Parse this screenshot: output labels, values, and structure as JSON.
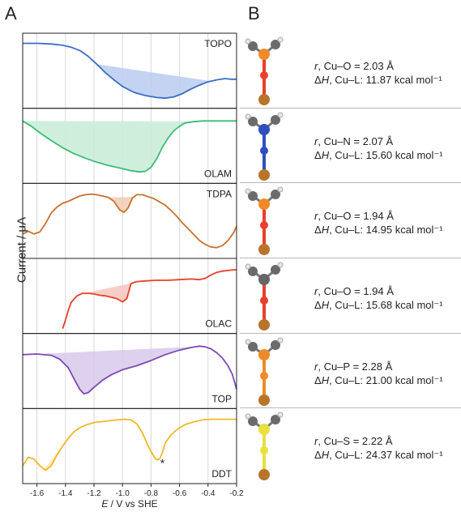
{
  "panel_a_label": "A",
  "panel_b_label": "B",
  "chart_data": {
    "type": "line",
    "xlabel_italic": "E",
    "xlabel_rest": " / V vs SHE",
    "ylabel": "Current / μA",
    "xlim": [
      -1.7,
      -0.2
    ],
    "xticks": [
      "-1.6",
      "-1.4",
      "-1.2",
      "-1.0",
      "-0.8",
      "-0.6",
      "-0.4",
      "-0.2"
    ],
    "grid": "vertical",
    "series": [
      {
        "name": "TOPO",
        "color": "#3a6fc4",
        "fill": "#b8cbee",
        "x": [
          -1.7,
          -1.6,
          -1.5,
          -1.42,
          -1.36,
          -1.3,
          -1.24,
          -1.18,
          -1.12,
          -1.06,
          -1.0,
          -0.92,
          -0.84,
          -0.76,
          -0.7,
          -0.64,
          -0.58,
          -0.52,
          -0.46,
          -0.4,
          -0.34,
          -0.28,
          -0.24,
          -0.2
        ],
        "y": [
          0.92,
          0.92,
          0.91,
          0.89,
          0.86,
          0.81,
          0.72,
          0.6,
          0.47,
          0.36,
          0.26,
          0.17,
          0.12,
          0.09,
          0.08,
          0.1,
          0.15,
          0.22,
          0.28,
          0.33,
          0.36,
          0.38,
          0.37,
          0.37
        ],
        "fill_range": [
          -1.18,
          -0.38
        ]
      },
      {
        "name": "OLAM",
        "color": "#3dbb7a",
        "fill": "#c7ecd6",
        "x": [
          -1.7,
          -1.64,
          -1.58,
          -1.5,
          -1.42,
          -1.34,
          -1.26,
          -1.18,
          -1.1,
          -1.02,
          -0.94,
          -0.88,
          -0.84,
          -0.8,
          -0.76,
          -0.72,
          -0.68,
          -0.64,
          -0.6,
          -0.56,
          -0.5,
          -0.44,
          -0.38,
          -0.32,
          -0.26,
          -0.2
        ],
        "y": [
          0.88,
          0.8,
          0.7,
          0.58,
          0.47,
          0.38,
          0.31,
          0.25,
          0.2,
          0.16,
          0.12,
          0.1,
          0.11,
          0.17,
          0.3,
          0.48,
          0.62,
          0.73,
          0.8,
          0.85,
          0.87,
          0.88,
          0.88,
          0.88,
          0.88,
          0.88
        ],
        "fill_range": [
          -1.7,
          -0.48
        ]
      },
      {
        "name": "TDPA",
        "color": "#c8712d",
        "fill": "#f0cdb3",
        "x": [
          -1.7,
          -1.66,
          -1.62,
          -1.58,
          -1.54,
          -1.5,
          -1.46,
          -1.42,
          -1.38,
          -1.34,
          -1.3,
          -1.26,
          -1.22,
          -1.18,
          -1.14,
          -1.1,
          -1.06,
          -1.02,
          -0.99,
          -0.96,
          -0.93,
          -0.9,
          -0.86,
          -0.82,
          -0.78,
          -0.74,
          -0.7,
          -0.66,
          -0.62,
          -0.58,
          -0.54,
          -0.5,
          -0.46,
          -0.42,
          -0.38,
          -0.34,
          -0.3,
          -0.26,
          -0.22,
          -0.2
        ],
        "y": [
          0.3,
          0.34,
          0.3,
          0.33,
          0.46,
          0.62,
          0.71,
          0.77,
          0.8,
          0.84,
          0.88,
          0.9,
          0.91,
          0.9,
          0.88,
          0.86,
          0.8,
          0.67,
          0.63,
          0.7,
          0.85,
          0.9,
          0.9,
          0.87,
          0.84,
          0.79,
          0.74,
          0.66,
          0.57,
          0.47,
          0.38,
          0.29,
          0.2,
          0.14,
          0.1,
          0.09,
          0.12,
          0.2,
          0.32,
          0.42
        ],
        "fill_range": [
          -1.1,
          -0.92
        ]
      },
      {
        "name": "OLAC",
        "color": "#e8402a",
        "fill": "#f6c4bf",
        "x": [
          -1.42,
          -1.4,
          -1.38,
          -1.36,
          -1.32,
          -1.28,
          -1.24,
          -1.2,
          -1.16,
          -1.12,
          -1.08,
          -1.04,
          -1.0,
          -0.97,
          -0.94,
          -0.9,
          -0.84,
          -0.76,
          -0.68,
          -0.6,
          -0.52,
          -0.46,
          -0.42,
          -0.38,
          -0.34,
          -0.3,
          -0.26,
          -0.22,
          -0.2
        ],
        "y": [
          0.0,
          0.13,
          0.28,
          0.4,
          0.5,
          0.54,
          0.54,
          0.53,
          0.51,
          0.5,
          0.48,
          0.46,
          0.41,
          0.46,
          0.69,
          0.72,
          0.73,
          0.74,
          0.74,
          0.75,
          0.76,
          0.75,
          0.77,
          0.82,
          0.86,
          0.88,
          0.89,
          0.9,
          0.9
        ],
        "fill_range": [
          -1.27,
          -0.93
        ]
      },
      {
        "name": "TOP",
        "color": "#7b4ab4",
        "fill": "#d8c9ea",
        "x": [
          -1.7,
          -1.6,
          -1.5,
          -1.44,
          -1.38,
          -1.34,
          -1.3,
          -1.27,
          -1.24,
          -1.2,
          -1.14,
          -1.08,
          -1.0,
          -0.9,
          -0.8,
          -0.7,
          -0.6,
          -0.52,
          -0.46,
          -0.42,
          -0.38,
          -0.34,
          -0.3,
          -0.26,
          -0.23,
          -0.21,
          -0.2
        ],
        "y": [
          0.75,
          0.76,
          0.74,
          0.68,
          0.55,
          0.38,
          0.22,
          0.15,
          0.17,
          0.25,
          0.36,
          0.44,
          0.52,
          0.58,
          0.66,
          0.75,
          0.82,
          0.86,
          0.88,
          0.87,
          0.84,
          0.78,
          0.7,
          0.58,
          0.45,
          0.3,
          0.22
        ],
        "fill_range": [
          -1.62,
          -0.48
        ]
      },
      {
        "name": "DDT",
        "color": "#f0b828",
        "fill": "#fbe6b8",
        "x": [
          -1.7,
          -1.66,
          -1.62,
          -1.58,
          -1.54,
          -1.5,
          -1.46,
          -1.42,
          -1.38,
          -1.34,
          -1.3,
          -1.26,
          -1.2,
          -1.12,
          -1.04,
          -0.98,
          -0.94,
          -0.9,
          -0.86,
          -0.82,
          -0.78,
          -0.76,
          -0.74,
          -0.72,
          -0.7,
          -0.66,
          -0.62,
          -0.56,
          -0.5,
          -0.44,
          -0.38,
          -0.32,
          -0.26,
          -0.2
        ],
        "y": [
          0.2,
          0.33,
          0.3,
          0.2,
          0.13,
          0.2,
          0.36,
          0.5,
          0.62,
          0.72,
          0.78,
          0.82,
          0.86,
          0.88,
          0.9,
          0.91,
          0.9,
          0.84,
          0.7,
          0.5,
          0.34,
          0.29,
          0.3,
          0.4,
          0.55,
          0.67,
          0.75,
          0.83,
          0.87,
          0.9,
          0.91,
          0.91,
          0.91,
          0.91
        ],
        "fill_range": [
          -1.55,
          -1.38
        ],
        "annotation": "*",
        "annotation_x": -0.72
      }
    ]
  },
  "molecules": [
    {
      "line1_italic": "r",
      "line1_rest": ", Cu–O = 2.03 Å",
      "line2_delta": "Δ",
      "line2_italic": "H",
      "line2_rest": ", Cu–L: 11.87 kcal mol⁻¹",
      "bond_color": "#e8402a",
      "hetero": "P"
    },
    {
      "line1_italic": "r",
      "line1_rest": ", Cu–N = 2.07 Å",
      "line2_delta": "Δ",
      "line2_italic": "H",
      "line2_rest": ", Cu–L: 15.60 kcal mol⁻¹",
      "bond_color": "#2f4fbf",
      "hetero": "N"
    },
    {
      "line1_italic": "r",
      "line1_rest": ", Cu–O = 1.94 Å",
      "line2_delta": "Δ",
      "line2_italic": "H",
      "line2_rest": ", Cu–L: 14.95 kcal mol⁻¹",
      "bond_color": "#e8402a",
      "hetero": "P"
    },
    {
      "line1_italic": "r",
      "line1_rest": ", Cu–O = 1.94 Å",
      "line2_delta": "Δ",
      "line2_italic": "H",
      "line2_rest": ", Cu–L: 15.68 kcal mol⁻¹",
      "bond_color": "#e8402a",
      "hetero": "C"
    },
    {
      "line1_italic": "r",
      "line1_rest": ", Cu–P = 2.28 Å",
      "line2_delta": "Δ",
      "line2_italic": "H",
      "line2_rest": ", Cu–L: 21.00 kcal mol⁻¹",
      "bond_color": "#f08a28",
      "hetero": "P"
    },
    {
      "line1_italic": "r",
      "line1_rest": ", Cu–S = 2.22 Å",
      "line2_delta": "Δ",
      "line2_italic": "H",
      "line2_rest": ", Cu–L: 24.37 kcal mol⁻¹",
      "bond_color": "#e8e040",
      "hetero": "S"
    }
  ]
}
